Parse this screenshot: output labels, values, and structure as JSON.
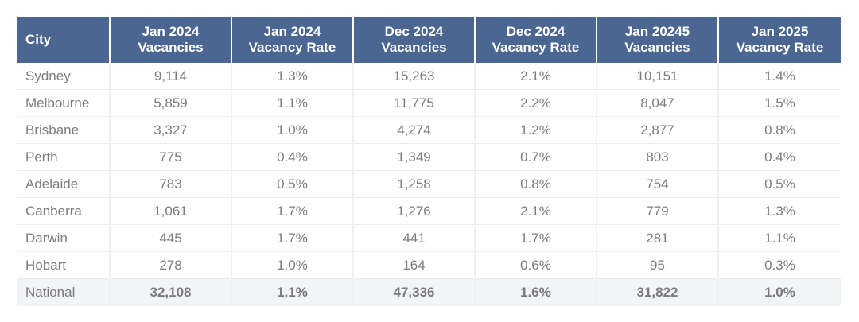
{
  "table": {
    "headers": [
      [
        "City",
        ""
      ],
      [
        "Jan 2024",
        "Vacancies"
      ],
      [
        "Jan 2024",
        "Vacancy Rate"
      ],
      [
        "Dec 2024",
        "Vacancies"
      ],
      [
        "Dec 2024",
        "Vacancy Rate"
      ],
      [
        "Jan 20245",
        "Vacancies"
      ],
      [
        "Jan 2025",
        "Vacancy Rate"
      ]
    ],
    "rows": [
      [
        "Sydney",
        "9,114",
        "1.3%",
        "15,263",
        "2.1%",
        "10,151",
        "1.4%"
      ],
      [
        "Melbourne",
        "5,859",
        "1.1%",
        "11,775",
        "2.2%",
        "8,047",
        "1.5%"
      ],
      [
        "Brisbane",
        "3,327",
        "1.0%",
        "4,274",
        "1.2%",
        "2,877",
        "0.8%"
      ],
      [
        "Perth",
        "775",
        "0.4%",
        "1,349",
        "0.7%",
        "803",
        "0.4%"
      ],
      [
        "Adelaide",
        "783",
        "0.5%",
        "1,258",
        "0.8%",
        "754",
        "0.5%"
      ],
      [
        "Canberra",
        "1,061",
        "1.7%",
        "1,276",
        "2.1%",
        "779",
        "1.3%"
      ],
      [
        "Darwin",
        "445",
        "1.7%",
        "441",
        "1.7%",
        "281",
        "1.1%"
      ],
      [
        "Hobart",
        "278",
        "1.0%",
        "164",
        "0.6%",
        "95",
        "0.3%"
      ]
    ],
    "total": [
      "National",
      "32,108",
      "1.1%",
      "47,336",
      "1.6%",
      "31,822",
      "1.0%"
    ]
  },
  "colors": {
    "header_bg": "#4a6691",
    "header_text": "#ffffff",
    "body_text": "#7c7c7c",
    "total_row_bg": "#f2f4f7"
  }
}
